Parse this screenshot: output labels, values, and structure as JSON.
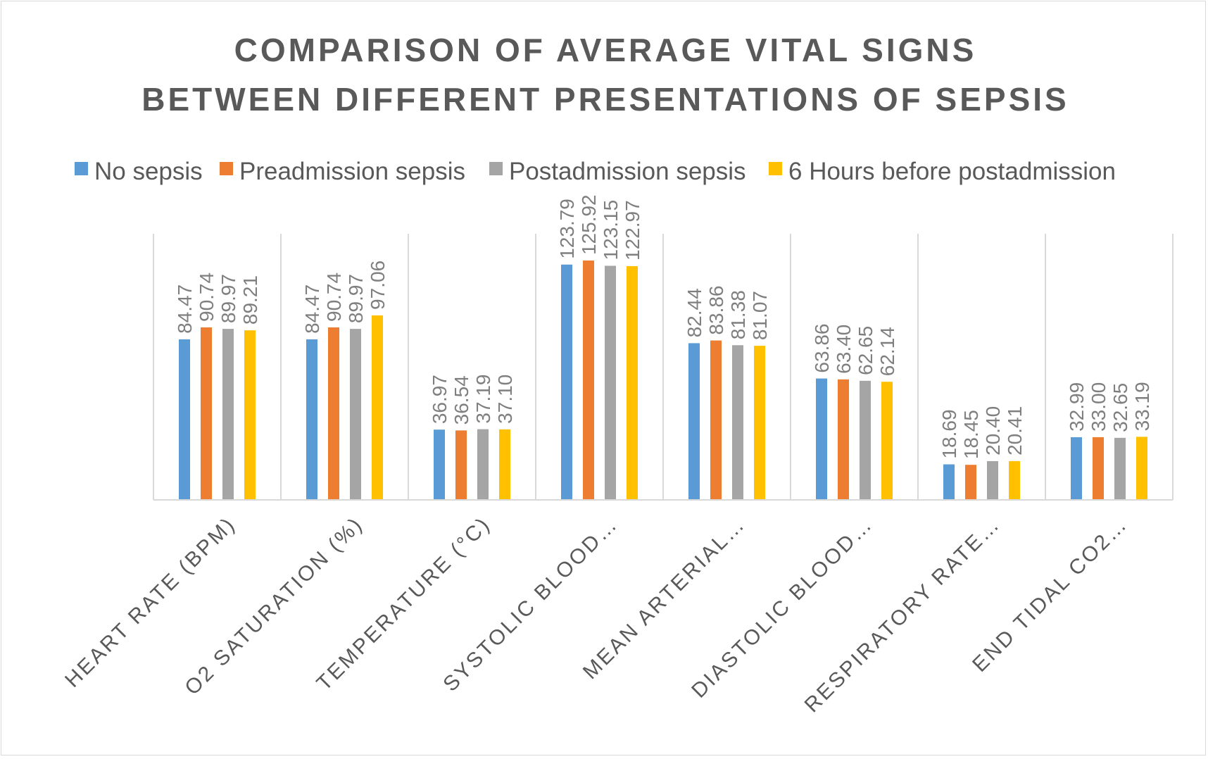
{
  "chart_data": {
    "type": "bar",
    "title_lines": [
      "COMPARISON OF AVERAGE VITAL SIGNS",
      "BETWEEN DIFFERENT PRESENTATIONS OF SEPSIS"
    ],
    "categories": [
      "HEART RATE (BPM)",
      "O2 SATURATION (%)",
      "TEMPERATURE (°C)",
      "SYSTOLIC BLOOD…",
      "MEAN ARTERIAL…",
      "DIASTOLIC BLOOD…",
      "RESPIRATORY RATE…",
      "END TIDAL CO2…"
    ],
    "series": [
      {
        "name": "No sepsis",
        "color": "#5b9bd5",
        "values": [
          84.47,
          84.47,
          36.97,
          123.79,
          82.44,
          63.86,
          18.69,
          32.99
        ],
        "labels": [
          "84.47",
          "84.47",
          "36.97",
          "123.79",
          "82.44",
          "63.86",
          "18.69",
          "32.99"
        ]
      },
      {
        "name": "Preadmission sepsis",
        "color": "#ed7d31",
        "values": [
          90.74,
          90.74,
          36.54,
          125.92,
          83.86,
          63.4,
          18.45,
          33.0
        ],
        "labels": [
          "90.74",
          "90.74",
          "36.54",
          "125.92",
          "83.86",
          "63.40",
          "18.45",
          "33.00"
        ]
      },
      {
        "name": "Postadmission sepsis",
        "color": "#a5a5a5",
        "values": [
          89.97,
          89.97,
          37.19,
          123.15,
          81.38,
          62.65,
          20.4,
          32.65
        ],
        "labels": [
          "89.97",
          "89.97",
          "37.19",
          "123.15",
          "81.38",
          "62.65",
          "20.40",
          "32.65"
        ]
      },
      {
        "name": "6 Hours before postadmission",
        "color": "#ffc000",
        "values": [
          89.21,
          97.06,
          37.1,
          122.97,
          81.07,
          62.14,
          20.41,
          33.19
        ],
        "labels": [
          "89.21",
          "97.06",
          "37.10",
          "122.97",
          "81.07",
          "62.14",
          "20.41",
          "33.19"
        ]
      }
    ],
    "ylim": [
      0,
      140
    ],
    "legend_position": "top",
    "gridlines": "vertical category separators",
    "xlabel": "",
    "ylabel": ""
  }
}
